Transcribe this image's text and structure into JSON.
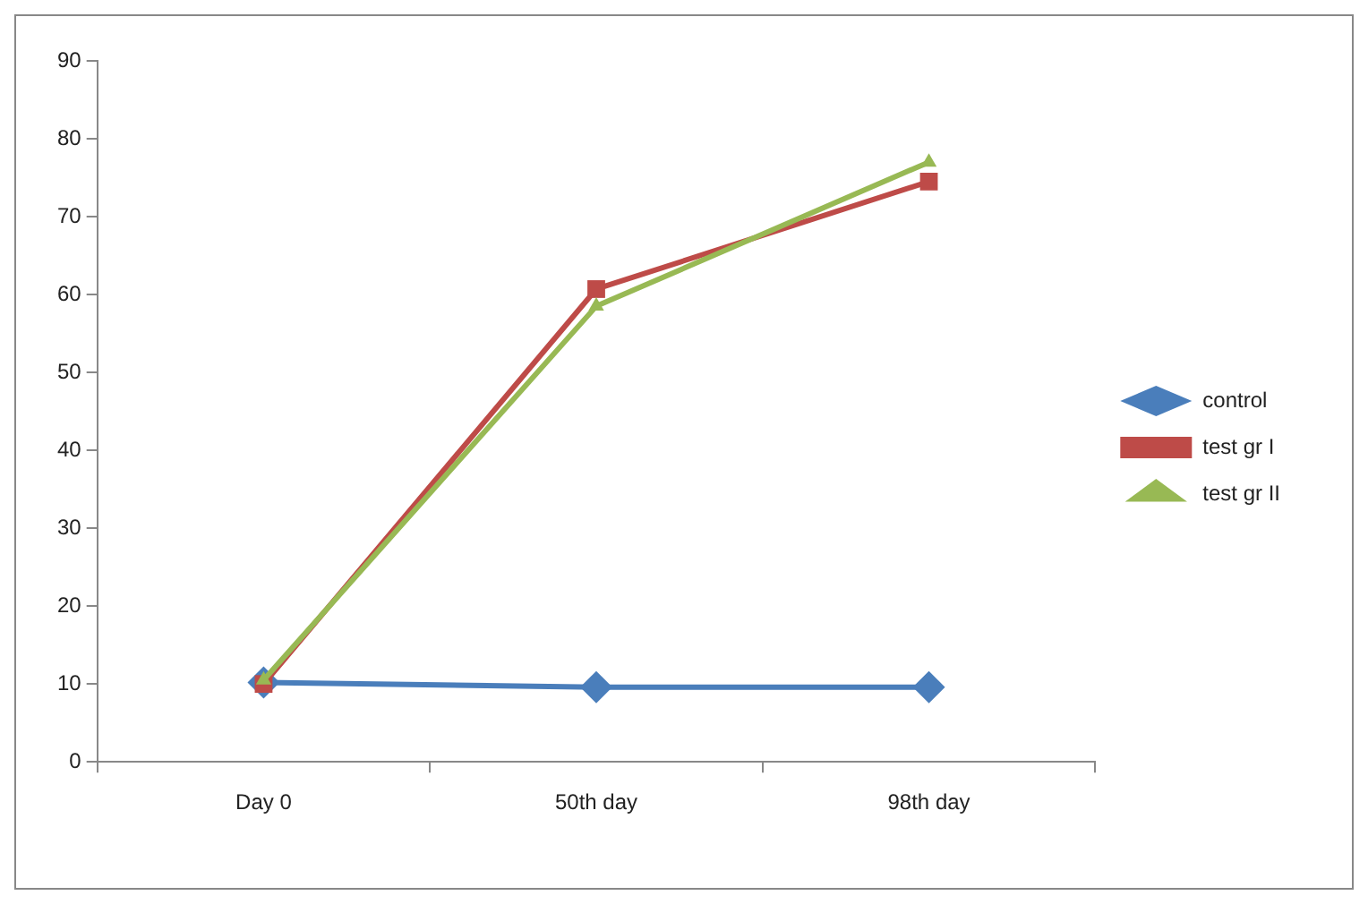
{
  "chart_data": {
    "type": "line",
    "categories": [
      "Day 0",
      "50th day",
      "98th day"
    ],
    "series": [
      {
        "name": "control",
        "color": "#4a7ebb",
        "marker": "diamond",
        "values": [
          10.2,
          9.6,
          9.6
        ]
      },
      {
        "name": "test gr I",
        "color": "#be4b48",
        "marker": "square",
        "values": [
          10,
          60.7,
          74.5
        ]
      },
      {
        "name": "test gr II",
        "color": "#98b954",
        "marker": "triangle",
        "values": [
          10.5,
          58.5,
          77
        ]
      }
    ],
    "ylim": [
      0,
      90
    ],
    "yticks": [
      0,
      10,
      20,
      30,
      40,
      50,
      60,
      70,
      80,
      90
    ],
    "grid": false,
    "legend": "right",
    "line_style": "solid"
  }
}
